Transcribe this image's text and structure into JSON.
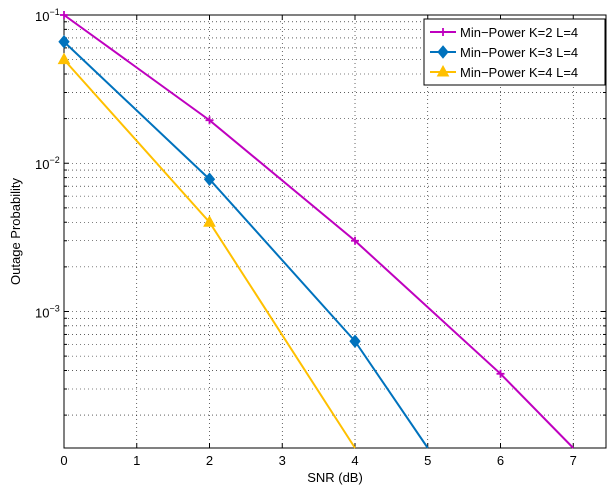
{
  "chart_data": {
    "type": "line",
    "title": "",
    "xlabel": "SNR (dB)",
    "ylabel": "Outage Probability",
    "xlim": [
      0,
      7.45
    ],
    "ylim": [
      0.00012,
      0.1
    ],
    "yscale": "log",
    "grid": true,
    "x_ticks": [
      0,
      1,
      2,
      3,
      4,
      5,
      6,
      7
    ],
    "x_tick_labels": [
      "0",
      "1",
      "2",
      "3",
      "4",
      "5",
      "6",
      "7"
    ],
    "y_ticks": [
      {
        "value": 0.1,
        "base": "10",
        "exp": "−1"
      },
      {
        "value": 0.01,
        "base": "10",
        "exp": "−2"
      },
      {
        "value": 0.001,
        "base": "10",
        "exp": "−3"
      }
    ],
    "legend_position": "top-right",
    "series": [
      {
        "name": "Min−Power K=2 L=4",
        "color": "#BF00BF",
        "marker": "plus",
        "x": [
          0,
          2,
          4,
          6,
          7
        ],
        "y": [
          0.1,
          0.0195,
          0.003,
          0.00038,
          0.00012
        ]
      },
      {
        "name": "Min−Power K=3 L=4",
        "color": "#0072BD",
        "marker": "diamond",
        "x": [
          0,
          2,
          4,
          5
        ],
        "y": [
          0.066,
          0.0078,
          0.00063,
          0.00012
        ]
      },
      {
        "name": "Min−Power K=4 L=4",
        "color": "#FFC000",
        "marker": "triangle",
        "x": [
          0,
          2,
          4
        ],
        "y": [
          0.05,
          0.004,
          0.00012
        ]
      }
    ]
  }
}
